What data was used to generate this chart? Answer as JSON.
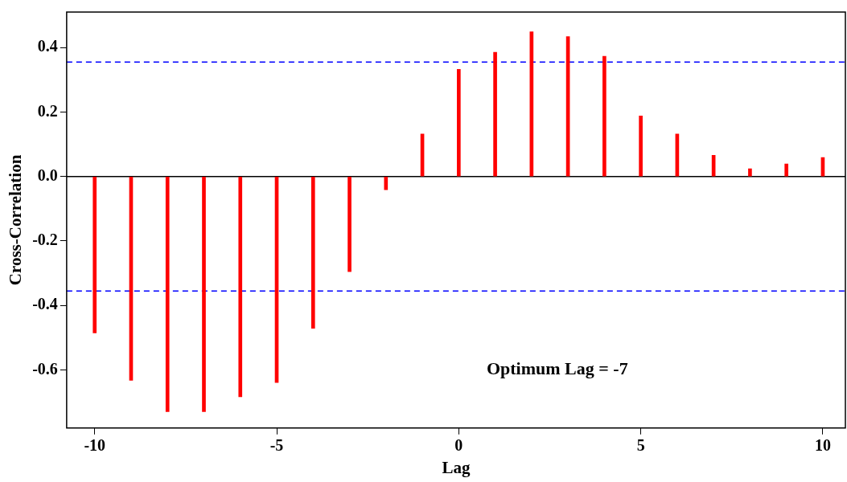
{
  "chart_data": {
    "type": "bar",
    "xlabel": "Lag",
    "ylabel": "Cross-Correlation",
    "x": [
      -10,
      -9,
      -8,
      -7,
      -6,
      -5,
      -4,
      -3,
      -2,
      -1,
      0,
      1,
      2,
      3,
      4,
      5,
      6,
      7,
      8,
      9,
      10
    ],
    "values": [
      -0.485,
      -0.632,
      -0.729,
      -0.729,
      -0.683,
      -0.639,
      -0.471,
      -0.295,
      -0.041,
      0.132,
      0.332,
      0.385,
      0.449,
      0.434,
      0.373,
      0.188,
      0.132,
      0.066,
      0.024,
      0.039,
      0.059
    ],
    "color": "#ff0000",
    "xlim": [
      -10.77,
      10.62
    ],
    "xticks": [
      -10,
      -5,
      0,
      5,
      10
    ],
    "ylim": [
      -0.78,
      0.51
    ],
    "yticks": [
      -0.6,
      -0.4,
      -0.2,
      {
        "value": 0,
        "label": "0.0"
      },
      0.2,
      0.4
    ],
    "grid": false,
    "legend": false,
    "ref_lines": [
      {
        "axis": "y",
        "value": 0.355,
        "color": "#0000ff",
        "line_style": "dashed"
      },
      {
        "axis": "y",
        "value": -0.355,
        "color": "#0000ff",
        "line_style": "dashed"
      },
      {
        "axis": "y",
        "value": 0,
        "color": "#000000",
        "line_style": "solid"
      }
    ],
    "annotations": [
      "Optimum Lag = -7"
    ]
  }
}
